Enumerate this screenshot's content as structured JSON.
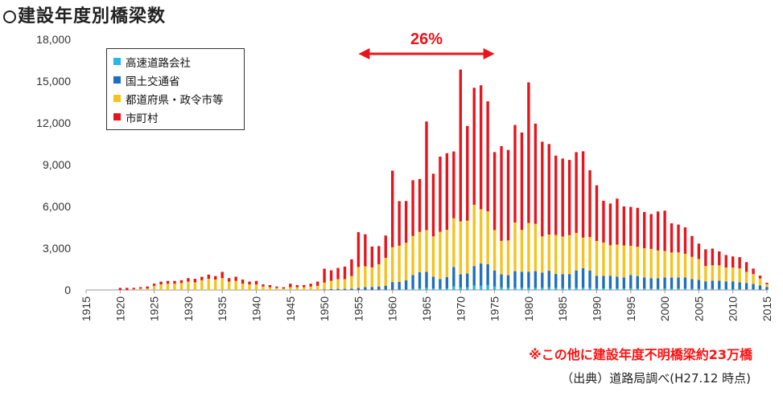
{
  "title": "建設年度別橋梁数",
  "footnote": "※この他に建設年度不明橋梁約23万橋",
  "source": "（出典）道路局調べ(H27.12 時点)",
  "annotation": {
    "label": "26%",
    "x_from": 1955,
    "x_to": 1975,
    "color": "#e8141c"
  },
  "colors": {
    "s1": "#29b6e8",
    "s2": "#1f6fbd",
    "s3": "#f7c21a",
    "s4": "#e8141c"
  },
  "chart_data": {
    "type": "bar",
    "stacked": true,
    "title": "建設年度別橋梁数",
    "xlabel": "",
    "ylabel": "",
    "ylim": [
      0,
      18000
    ],
    "yticks": [
      "0",
      "3,000",
      "6,000",
      "9,000",
      "12,000",
      "15,000",
      "18,000"
    ],
    "xticks": [
      "1915",
      "1920",
      "1925",
      "1930",
      "1935",
      "1940",
      "1945",
      "1950",
      "1955",
      "1960",
      "1965",
      "1970",
      "1975",
      "1980",
      "1985",
      "1990",
      "1995",
      "2000",
      "2005",
      "2010",
      "2015"
    ],
    "legend": "top-left",
    "grid": false,
    "x": [
      1915,
      1916,
      1917,
      1918,
      1919,
      1920,
      1921,
      1922,
      1923,
      1924,
      1925,
      1926,
      1927,
      1928,
      1929,
      1930,
      1931,
      1932,
      1933,
      1934,
      1935,
      1936,
      1937,
      1938,
      1939,
      1940,
      1941,
      1942,
      1943,
      1944,
      1945,
      1946,
      1947,
      1948,
      1949,
      1950,
      1951,
      1952,
      1953,
      1954,
      1955,
      1956,
      1957,
      1958,
      1959,
      1960,
      1961,
      1962,
      1963,
      1964,
      1965,
      1966,
      1967,
      1968,
      1969,
      1970,
      1971,
      1972,
      1973,
      1974,
      1975,
      1976,
      1977,
      1978,
      1979,
      1980,
      1981,
      1982,
      1983,
      1984,
      1985,
      1986,
      1987,
      1988,
      1989,
      1990,
      1991,
      1992,
      1993,
      1994,
      1995,
      1996,
      1997,
      1998,
      1999,
      2000,
      2001,
      2002,
      2003,
      2004,
      2005,
      2006,
      2007,
      2008,
      2009,
      2010,
      2011,
      2012,
      2013,
      2014,
      2015
    ],
    "series": [
      {
        "name": "高速道路会社",
        "values": [
          0,
          0,
          0,
          0,
          0,
          0,
          0,
          0,
          0,
          0,
          0,
          0,
          0,
          0,
          0,
          0,
          0,
          0,
          0,
          0,
          0,
          0,
          0,
          0,
          0,
          0,
          0,
          0,
          0,
          0,
          0,
          0,
          0,
          0,
          0,
          0,
          0,
          0,
          0,
          0,
          0,
          0,
          0,
          0,
          10,
          20,
          30,
          40,
          80,
          120,
          150,
          100,
          80,
          120,
          250,
          180,
          180,
          320,
          300,
          350,
          250,
          180,
          160,
          150,
          160,
          160,
          150,
          150,
          180,
          150,
          140,
          140,
          150,
          160,
          150,
          120,
          110,
          110,
          110,
          100,
          120,
          100,
          100,
          100,
          90,
          100,
          90,
          100,
          100,
          80,
          80,
          70,
          70,
          70,
          60,
          60,
          60,
          50,
          40,
          30,
          20
        ]
      },
      {
        "name": "国土交通省",
        "values": [
          0,
          0,
          0,
          0,
          0,
          0,
          0,
          0,
          0,
          0,
          0,
          0,
          0,
          0,
          0,
          0,
          0,
          0,
          0,
          0,
          0,
          0,
          0,
          0,
          0,
          0,
          0,
          0,
          0,
          0,
          0,
          0,
          0,
          0,
          0,
          30,
          60,
          80,
          80,
          100,
          150,
          200,
          220,
          250,
          300,
          550,
          550,
          650,
          1000,
          1150,
          1150,
          850,
          700,
          800,
          1400,
          950,
          1000,
          1400,
          1600,
          1500,
          1150,
          950,
          900,
          1200,
          1150,
          1150,
          1200,
          1100,
          1200,
          1000,
          1000,
          1000,
          1250,
          1400,
          1250,
          900,
          900,
          900,
          850,
          800,
          950,
          900,
          800,
          750,
          750,
          800,
          800,
          800,
          800,
          700,
          650,
          550,
          600,
          600,
          550,
          550,
          500,
          450,
          400,
          300,
          200
        ]
      },
      {
        "name": "都道府県・政令市等",
        "values": [
          0,
          0,
          0,
          0,
          0,
          0,
          0,
          50,
          100,
          100,
          300,
          400,
          450,
          450,
          500,
          600,
          550,
          700,
          800,
          750,
          850,
          600,
          650,
          450,
          400,
          400,
          250,
          200,
          150,
          100,
          200,
          200,
          200,
          250,
          300,
          500,
          600,
          700,
          700,
          900,
          1500,
          1500,
          1400,
          1600,
          2000,
          2500,
          2600,
          2700,
          2800,
          2900,
          3000,
          2900,
          3400,
          3400,
          3500,
          3800,
          3800,
          4400,
          3900,
          3800,
          2900,
          2400,
          2500,
          3500,
          3000,
          3500,
          3400,
          2600,
          2600,
          2800,
          2700,
          2800,
          2700,
          2200,
          2400,
          2500,
          2400,
          2200,
          2300,
          2300,
          2100,
          2100,
          2100,
          2100,
          2000,
          1900,
          1800,
          1800,
          1700,
          1600,
          1500,
          1100,
          1100,
          1100,
          1000,
          1000,
          1000,
          800,
          700,
          500,
          200
        ]
      },
      {
        "name": "市町村",
        "values": [
          0,
          0,
          0,
          0,
          0,
          150,
          150,
          100,
          100,
          150,
          150,
          200,
          200,
          200,
          200,
          250,
          250,
          250,
          300,
          250,
          450,
          250,
          300,
          300,
          200,
          250,
          150,
          150,
          100,
          100,
          250,
          150,
          150,
          200,
          300,
          1000,
          750,
          800,
          900,
          1200,
          2500,
          2300,
          1500,
          1300,
          1600,
          5500,
          3200,
          3000,
          4000,
          3800,
          7800,
          4500,
          5400,
          5500,
          4800,
          10900,
          6800,
          8400,
          8900,
          7900,
          5600,
          6800,
          6500,
          7000,
          7000,
          10100,
          7200,
          6800,
          6500,
          5700,
          5600,
          5400,
          5800,
          6200,
          4800,
          4000,
          3000,
          3000,
          3300,
          2800,
          2800,
          2800,
          2600,
          2500,
          2800,
          2900,
          2100,
          2000,
          1900,
          1500,
          1100,
          1200,
          1200,
          1000,
          900,
          800,
          800,
          700,
          400,
          200,
          100
        ]
      }
    ]
  }
}
